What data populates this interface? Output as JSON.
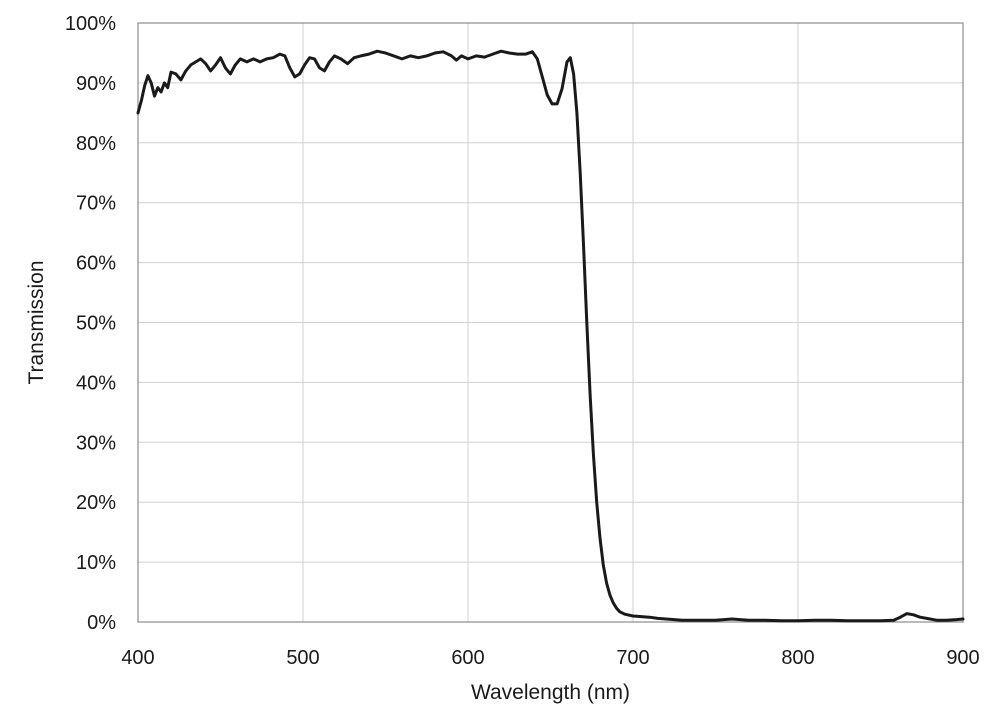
{
  "chart_data": {
    "type": "line",
    "title": "",
    "xlabel": "Wavelength (nm)",
    "ylabel": "Transmission",
    "xlim": [
      400,
      900
    ],
    "ylim": [
      0,
      100
    ],
    "x_ticks": [
      400,
      500,
      600,
      700,
      800,
      900
    ],
    "y_ticks": [
      0,
      10,
      20,
      30,
      40,
      50,
      60,
      70,
      80,
      90,
      100
    ],
    "y_tick_labels": [
      "0%",
      "10%",
      "20%",
      "30%",
      "40%",
      "50%",
      "60%",
      "70%",
      "80%",
      "90%",
      "100%"
    ],
    "grid": true,
    "legend": "none",
    "series": [
      {
        "color": "#1a1a1a",
        "points": [
          [
            400,
            85.0
          ],
          [
            402,
            87.0
          ],
          [
            404,
            89.5
          ],
          [
            406,
            91.2
          ],
          [
            408,
            90.0
          ],
          [
            410,
            87.8
          ],
          [
            412,
            89.2
          ],
          [
            414,
            88.5
          ],
          [
            416,
            90.0
          ],
          [
            418,
            89.2
          ],
          [
            420,
            91.8
          ],
          [
            423,
            91.5
          ],
          [
            426,
            90.5
          ],
          [
            429,
            92.0
          ],
          [
            432,
            93.0
          ],
          [
            435,
            93.5
          ],
          [
            438,
            94.0
          ],
          [
            441,
            93.2
          ],
          [
            444,
            92.0
          ],
          [
            447,
            93.0
          ],
          [
            450,
            94.2
          ],
          [
            453,
            92.5
          ],
          [
            456,
            91.5
          ],
          [
            459,
            93.0
          ],
          [
            462,
            94.0
          ],
          [
            466,
            93.5
          ],
          [
            470,
            94.0
          ],
          [
            474,
            93.5
          ],
          [
            478,
            94.0
          ],
          [
            482,
            94.2
          ],
          [
            486,
            94.8
          ],
          [
            489,
            94.5
          ],
          [
            492,
            92.5
          ],
          [
            495,
            91.0
          ],
          [
            498,
            91.5
          ],
          [
            501,
            93.0
          ],
          [
            504,
            94.2
          ],
          [
            507,
            94.0
          ],
          [
            510,
            92.5
          ],
          [
            513,
            92.0
          ],
          [
            516,
            93.5
          ],
          [
            519,
            94.5
          ],
          [
            523,
            94.0
          ],
          [
            527,
            93.2
          ],
          [
            531,
            94.2
          ],
          [
            535,
            94.5
          ],
          [
            540,
            94.8
          ],
          [
            545,
            95.3
          ],
          [
            550,
            95.0
          ],
          [
            555,
            94.5
          ],
          [
            560,
            94.0
          ],
          [
            565,
            94.5
          ],
          [
            570,
            94.2
          ],
          [
            575,
            94.5
          ],
          [
            580,
            95.0
          ],
          [
            585,
            95.2
          ],
          [
            590,
            94.5
          ],
          [
            593,
            93.8
          ],
          [
            596,
            94.5
          ],
          [
            600,
            94.0
          ],
          [
            605,
            94.5
          ],
          [
            610,
            94.3
          ],
          [
            615,
            94.8
          ],
          [
            620,
            95.3
          ],
          [
            625,
            95.0
          ],
          [
            630,
            94.8
          ],
          [
            635,
            94.8
          ],
          [
            639,
            95.2
          ],
          [
            642,
            94.0
          ],
          [
            645,
            91.0
          ],
          [
            648,
            88.0
          ],
          [
            651,
            86.5
          ],
          [
            654,
            86.5
          ],
          [
            657,
            89.0
          ],
          [
            660,
            93.5
          ],
          [
            662,
            94.2
          ],
          [
            664,
            91.5
          ],
          [
            666,
            85.0
          ],
          [
            668,
            75.0
          ],
          [
            670,
            63.0
          ],
          [
            672,
            50.0
          ],
          [
            674,
            38.0
          ],
          [
            676,
            28.0
          ],
          [
            678,
            20.0
          ],
          [
            680,
            14.0
          ],
          [
            682,
            9.5
          ],
          [
            684,
            6.5
          ],
          [
            686,
            4.5
          ],
          [
            688,
            3.2
          ],
          [
            690,
            2.3
          ],
          [
            692,
            1.7
          ],
          [
            695,
            1.3
          ],
          [
            700,
            1.0
          ],
          [
            705,
            0.9
          ],
          [
            710,
            0.8
          ],
          [
            715,
            0.6
          ],
          [
            720,
            0.5
          ],
          [
            730,
            0.3
          ],
          [
            740,
            0.3
          ],
          [
            750,
            0.3
          ],
          [
            760,
            0.5
          ],
          [
            770,
            0.3
          ],
          [
            780,
            0.3
          ],
          [
            790,
            0.2
          ],
          [
            800,
            0.2
          ],
          [
            810,
            0.3
          ],
          [
            820,
            0.3
          ],
          [
            830,
            0.2
          ],
          [
            840,
            0.2
          ],
          [
            850,
            0.2
          ],
          [
            858,
            0.3
          ],
          [
            862,
            0.8
          ],
          [
            866,
            1.4
          ],
          [
            870,
            1.2
          ],
          [
            874,
            0.8
          ],
          [
            878,
            0.6
          ],
          [
            884,
            0.3
          ],
          [
            890,
            0.3
          ],
          [
            896,
            0.4
          ],
          [
            900,
            0.5
          ]
        ]
      }
    ]
  }
}
